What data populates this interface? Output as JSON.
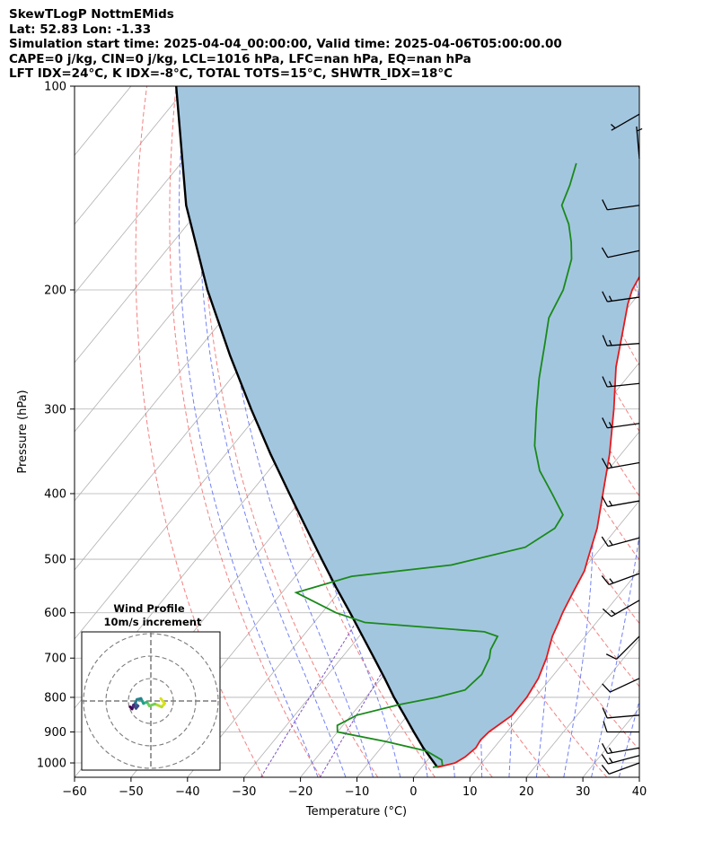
{
  "header": {
    "line1": "SkewTLogP NottmEMids",
    "line2": "Lat: 52.83   Lon: -1.33",
    "line3": "Simulation start time: 2025-04-04_00:00:00, Valid time: 2025-04-06T05:00:00.00",
    "line4": "CAPE=0 j/kg, CIN=0 j/kg, LCL=1016 hPa, LFC=nan hPa, EQ=nan hPa",
    "line5": "LFT IDX=24°C, K IDX=-8°C, TOTAL TOTS=15°C, SHWTR_IDX=18°C"
  },
  "chart_data": {
    "type": "skew-t",
    "xlabel": "Temperature (°C)",
    "ylabel": "Pressure (hPa)",
    "xlim": [
      -60,
      40
    ],
    "ylim": [
      1050,
      100
    ],
    "xticks": [
      "−60",
      "−50",
      "−40",
      "−30",
      "−20",
      "−10",
      "0",
      "10",
      "20",
      "30",
      "40"
    ],
    "xtick_values": [
      -60,
      -50,
      -40,
      -30,
      -20,
      -10,
      0,
      10,
      20,
      30,
      40
    ],
    "yticks": [
      "1000",
      "900",
      "800",
      "700",
      "600",
      "500",
      "400",
      "300",
      "200",
      "100"
    ],
    "ytick_values": [
      1000,
      900,
      800,
      700,
      600,
      500,
      400,
      300,
      200,
      100
    ],
    "y_scale": "log",
    "grid": true,
    "colors": {
      "temperature": "#e41a1c",
      "dewpoint": "#1a8a1a",
      "parcel": "#000000",
      "cin_fill": "#a3c6df",
      "dry_adiabat": "#f06b6b",
      "moist_adiabat": "#5a6cf0",
      "isotherm": "#b0b0b0",
      "mixing_ratio": "#7d4fc4"
    },
    "temperature_profile": [
      [
        1015,
        2.8
      ],
      [
        1000,
        5.3
      ],
      [
        980,
        6.2
      ],
      [
        950,
        6.8
      ],
      [
        925,
        6.5
      ],
      [
        900,
        6.8
      ],
      [
        850,
        8.5
      ],
      [
        800,
        8.5
      ],
      [
        750,
        7.8
      ],
      [
        700,
        6.3
      ],
      [
        650,
        4.2
      ],
      [
        620,
        3.3
      ],
      [
        600,
        2.6
      ],
      [
        560,
        1.5
      ],
      [
        520,
        0.4
      ],
      [
        500,
        -0.7
      ],
      [
        450,
        -3.5
      ],
      [
        400,
        -7.5
      ],
      [
        350,
        -12
      ],
      [
        300,
        -17.8
      ],
      [
        260,
        -23.5
      ],
      [
        230,
        -27.5
      ],
      [
        210,
        -30.5
      ],
      [
        200,
        -31.8
      ],
      [
        190,
        -32.5
      ],
      [
        185,
        -33.5
      ],
      [
        175,
        -35
      ],
      [
        165,
        -37
      ],
      [
        155,
        -38.5
      ],
      [
        150,
        -39.5
      ],
      [
        140,
        -43
      ],
      [
        132,
        -46
      ],
      [
        125,
        -49
      ],
      [
        115,
        -53
      ],
      [
        108,
        -56
      ],
      [
        100,
        -60
      ]
    ],
    "dewpoint_profile": [
      [
        1015,
        2.0
      ],
      [
        1010,
        3.5
      ],
      [
        990,
        2.5
      ],
      [
        960,
        -1.5
      ],
      [
        930,
        -10
      ],
      [
        900,
        -20
      ],
      [
        880,
        -21
      ],
      [
        850,
        -19
      ],
      [
        820,
        -13
      ],
      [
        800,
        -7.5
      ],
      [
        780,
        -3.5
      ],
      [
        740,
        -2.8
      ],
      [
        700,
        -3.8
      ],
      [
        680,
        -4.8
      ],
      [
        650,
        -5.5
      ],
      [
        640,
        -8.5
      ],
      [
        620,
        -31
      ],
      [
        600,
        -37.5
      ],
      [
        560,
        -47.5
      ],
      [
        530,
        -40
      ],
      [
        510,
        -24
      ],
      [
        480,
        -13.5
      ],
      [
        450,
        -11
      ],
      [
        430,
        -11.5
      ],
      [
        400,
        -16.5
      ],
      [
        370,
        -22
      ],
      [
        340,
        -26.5
      ],
      [
        300,
        -31.5
      ],
      [
        270,
        -35.5
      ],
      [
        240,
        -39.5
      ],
      [
        220,
        -42.5
      ],
      [
        200,
        -44
      ],
      [
        180,
        -47
      ],
      [
        170,
        -49.5
      ],
      [
        160,
        -52.5
      ],
      [
        150,
        -56.5
      ],
      [
        140,
        -58
      ],
      [
        130,
        -60
      ]
    ],
    "parcel_profile": [
      [
        1015,
        2.8
      ],
      [
        950,
        -2.5
      ],
      [
        900,
        -6.5
      ],
      [
        850,
        -10.6
      ],
      [
        800,
        -15
      ],
      [
        750,
        -19.4
      ],
      [
        700,
        -24.2
      ],
      [
        650,
        -29.4
      ],
      [
        600,
        -35
      ],
      [
        550,
        -41.2
      ],
      [
        500,
        -47.8
      ],
      [
        450,
        -55
      ],
      [
        400,
        -63
      ],
      [
        350,
        -72
      ],
      [
        300,
        -82
      ],
      [
        250,
        -93.5
      ],
      [
        200,
        -107
      ],
      [
        150,
        -123
      ],
      [
        100,
        -142
      ]
    ],
    "wind_barbs": [
      {
        "p": 1000,
        "dir": 250,
        "speed": 10
      },
      {
        "p": 975,
        "dir": 255,
        "speed": 15
      },
      {
        "p": 950,
        "dir": 260,
        "speed": 15
      },
      {
        "p": 900,
        "dir": 270,
        "speed": 10
      },
      {
        "p": 850,
        "dir": 265,
        "speed": 10
      },
      {
        "p": 750,
        "dir": 245,
        "speed": 10
      },
      {
        "p": 650,
        "dir": 225,
        "speed": 10
      },
      {
        "p": 575,
        "dir": 240,
        "speed": 15
      },
      {
        "p": 525,
        "dir": 250,
        "speed": 15
      },
      {
        "p": 465,
        "dir": 255,
        "speed": 15
      },
      {
        "p": 410,
        "dir": 260,
        "speed": 15
      },
      {
        "p": 360,
        "dir": 260,
        "speed": 15
      },
      {
        "p": 315,
        "dir": 262,
        "speed": 15
      },
      {
        "p": 275,
        "dir": 264,
        "speed": 15
      },
      {
        "p": 240,
        "dir": 266,
        "speed": 15
      },
      {
        "p": 205,
        "dir": 262,
        "speed": 15
      },
      {
        "p": 175,
        "dir": 258,
        "speed": 10
      },
      {
        "p": 150,
        "dir": 262,
        "speed": 10
      },
      {
        "p": 128,
        "dir": 355,
        "speed": 5
      },
      {
        "p": 110,
        "dir": 240,
        "speed": 5
      }
    ],
    "inset": {
      "title_line1": "Wind Profile",
      "title_line2": "10m/s increment",
      "hodograph": [
        [
          2,
          -0.5
        ],
        [
          2.8,
          0.5
        ],
        [
          2.2,
          1.2
        ],
        [
          0.8,
          0.6
        ],
        [
          -0.3,
          1.0
        ],
        [
          -0.8,
          0.2
        ],
        [
          -1.5,
          0.5
        ],
        [
          -2.0,
          -0.5
        ],
        [
          -2.8,
          -0.3
        ],
        [
          -3.2,
          0.5
        ],
        [
          -2.6,
          1.0
        ],
        [
          -3.0,
          1.5
        ],
        [
          -3.5,
          0.8
        ],
        [
          -3.8,
          1.6
        ],
        [
          -4.2,
          1.2
        ]
      ]
    }
  }
}
